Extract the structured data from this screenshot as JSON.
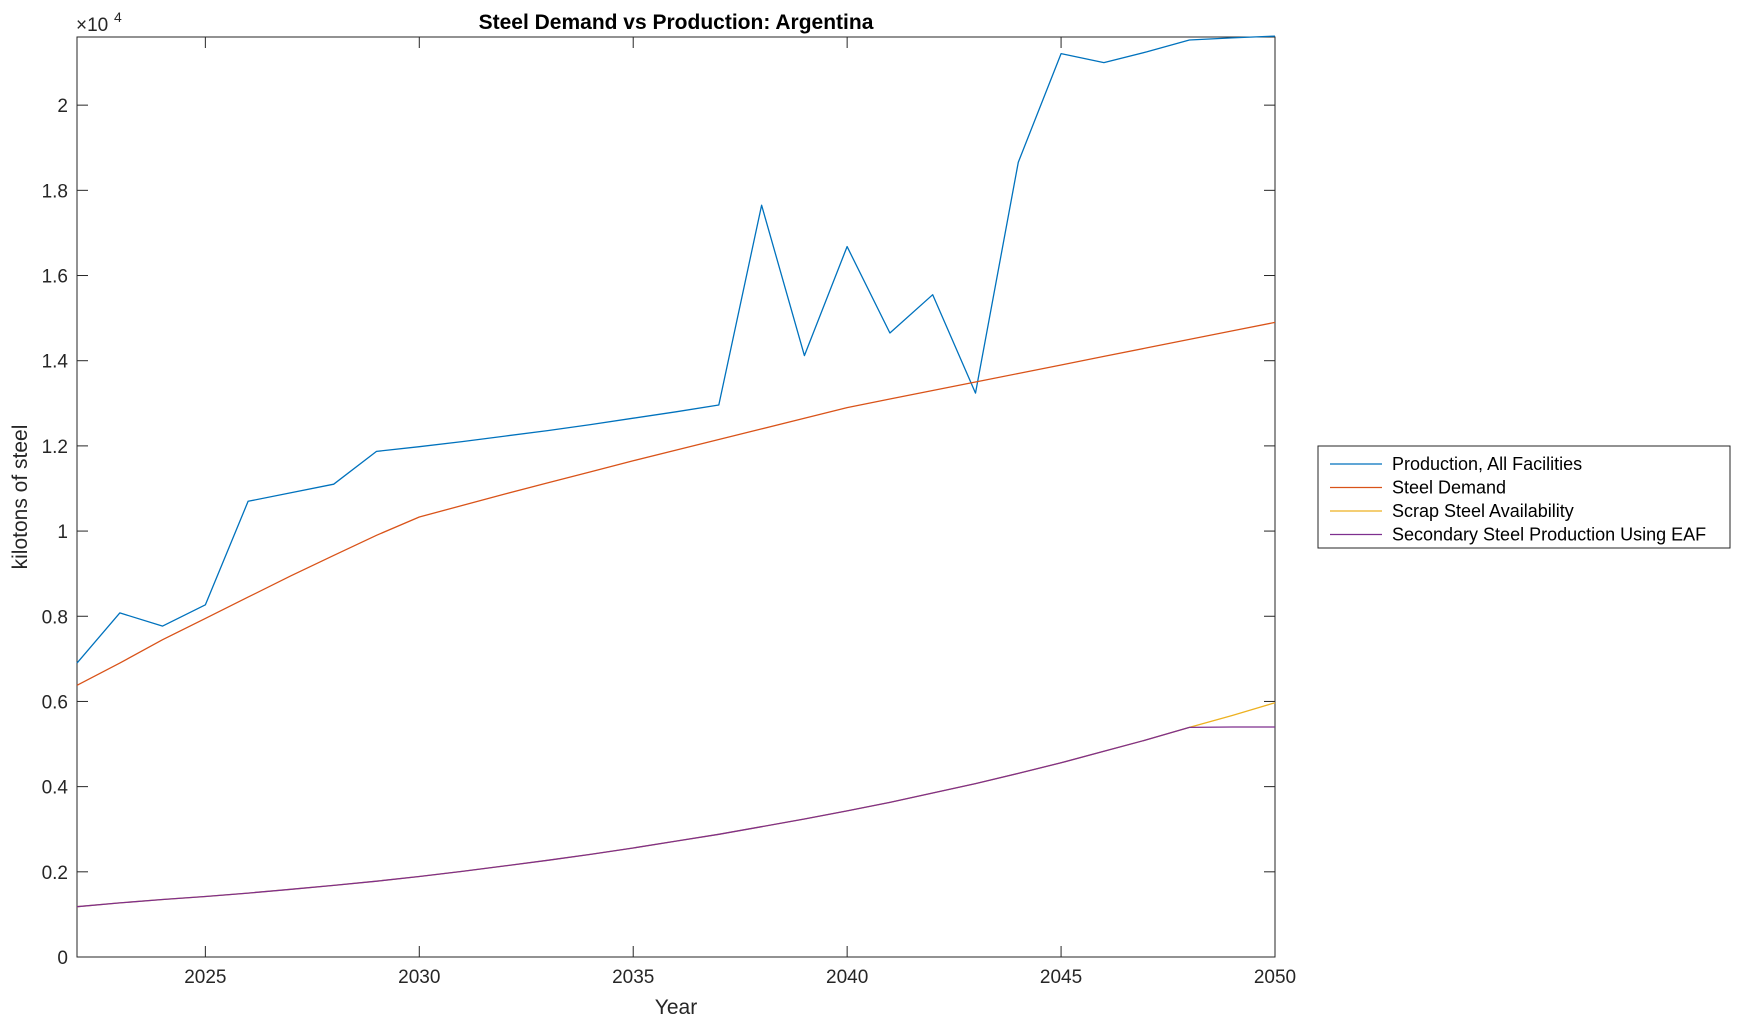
{
  "chart_data": {
    "type": "line",
    "title": "Steel Demand vs Production: Argentina",
    "xlabel": "Year",
    "ylabel": "kilotons of steel",
    "multiplier_base": "×10",
    "multiplier_exp": "4",
    "xlim": [
      2022,
      2050
    ],
    "ylim": [
      0,
      21600
    ],
    "xticks": [
      2025,
      2030,
      2035,
      2040,
      2045,
      2050
    ],
    "xtick_labels": [
      "2025",
      "2030",
      "2035",
      "2040",
      "2045",
      "2050"
    ],
    "yticks": [
      0,
      2000,
      4000,
      6000,
      8000,
      10000,
      12000,
      14000,
      16000,
      18000,
      20000
    ],
    "ytick_labels": [
      "0",
      "0.2",
      "0.4",
      "0.6",
      "0.8",
      "1",
      "1.2",
      "1.4",
      "1.6",
      "1.8",
      "2"
    ],
    "grid": false,
    "legend_placement": "outside-right",
    "x": [
      2022,
      2023,
      2024,
      2025,
      2026,
      2027,
      2028,
      2029,
      2030,
      2031,
      2032,
      2033,
      2034,
      2035,
      2036,
      2037,
      2038,
      2039,
      2040,
      2041,
      2042,
      2043,
      2044,
      2045,
      2046,
      2047,
      2048,
      2049,
      2050
    ],
    "series": [
      {
        "name": "Production, All Facilities",
        "color": "#0072BD",
        "values": [
          6900,
          8080,
          7770,
          8270,
          10700,
          10900,
          11100,
          11870,
          11980,
          12100,
          12230,
          12360,
          12500,
          12650,
          12800,
          12960,
          17650,
          14120,
          16680,
          14650,
          15550,
          13240,
          18660,
          21210,
          21000,
          21250,
          21530,
          21580,
          21620
        ]
      },
      {
        "name": "Steel Demand",
        "color": "#D95319",
        "values": [
          6380,
          6900,
          7450,
          7950,
          8450,
          8950,
          9430,
          9900,
          10330,
          10600,
          10870,
          11130,
          11390,
          11650,
          11900,
          12150,
          12400,
          12650,
          12900,
          13100,
          13300,
          13500,
          13700,
          13900,
          14100,
          14300,
          14500,
          14700,
          14900
        ]
      },
      {
        "name": "Scrap Steel Availability",
        "color": "#EDB120",
        "values": [
          1180,
          1270,
          1350,
          1420,
          1500,
          1590,
          1680,
          1780,
          1890,
          2010,
          2140,
          2270,
          2410,
          2560,
          2720,
          2880,
          3060,
          3240,
          3430,
          3630,
          3850,
          4070,
          4310,
          4560,
          4830,
          5100,
          5390,
          5670,
          5970
        ]
      },
      {
        "name": "Secondary Steel Production Using EAF",
        "color": "#7E2F8E",
        "values": [
          1180,
          1270,
          1350,
          1420,
          1500,
          1590,
          1680,
          1780,
          1890,
          2010,
          2140,
          2270,
          2410,
          2560,
          2720,
          2880,
          3060,
          3240,
          3430,
          3630,
          3850,
          4070,
          4310,
          4560,
          4830,
          5100,
          5390,
          5400,
          5400
        ]
      }
    ]
  }
}
